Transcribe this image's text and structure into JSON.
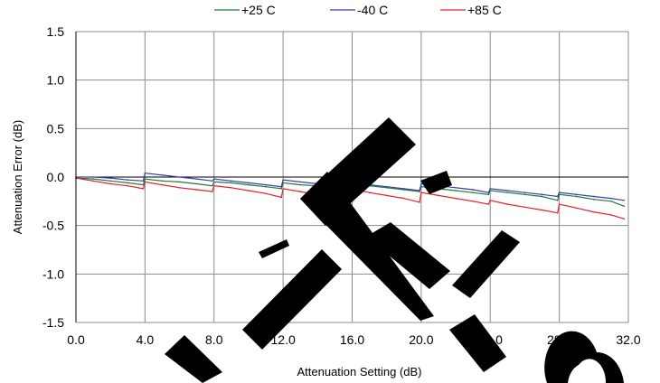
{
  "chart_data": {
    "type": "line",
    "xlabel": "Attenuation Setting (dB)",
    "ylabel": "Attenuation Error (dB)",
    "xlim": [
      0,
      32
    ],
    "ylim": [
      -1.5,
      1.5
    ],
    "x_ticks": [
      "0.0",
      "4.0",
      "8.0",
      "12.0",
      "16.0",
      "20.0",
      "24.0",
      "28.0",
      "32.0"
    ],
    "y_ticks": [
      "1.5",
      "1.0",
      "0.5",
      "0.0",
      "-0.5",
      "-1.0",
      "-1.5"
    ],
    "grid": true,
    "legend_position": "top",
    "x": [
      0.0,
      1.0,
      2.0,
      3.0,
      3.9,
      4.0,
      5.0,
      6.0,
      7.0,
      7.9,
      8.0,
      9.0,
      10.0,
      11.0,
      11.9,
      12.0,
      13.0,
      14.0,
      15.0,
      15.9,
      16.0,
      17.0,
      18.0,
      19.0,
      19.9,
      20.0,
      21.0,
      22.0,
      23.0,
      23.9,
      24.0,
      25.0,
      26.0,
      27.0,
      27.9,
      28.0,
      29.0,
      30.0,
      31.0,
      31.75
    ],
    "series": [
      {
        "name": "+25 C",
        "color": "#1f7a3c",
        "values": [
          -0.01,
          -0.02,
          -0.04,
          -0.06,
          -0.08,
          -0.02,
          -0.04,
          -0.05,
          -0.07,
          -0.09,
          -0.05,
          -0.06,
          -0.08,
          -0.1,
          -0.12,
          -0.06,
          -0.08,
          -0.09,
          -0.11,
          -0.12,
          -0.08,
          -0.09,
          -0.11,
          -0.13,
          -0.15,
          -0.1,
          -0.12,
          -0.14,
          -0.16,
          -0.18,
          -0.14,
          -0.16,
          -0.18,
          -0.2,
          -0.24,
          -0.18,
          -0.2,
          -0.23,
          -0.25,
          -0.3
        ]
      },
      {
        "name": "-40 C",
        "color": "#3a3fa8",
        "values": [
          0.0,
          0.0,
          -0.01,
          -0.03,
          -0.04,
          0.04,
          0.02,
          0.0,
          -0.02,
          -0.04,
          -0.02,
          -0.04,
          -0.06,
          -0.08,
          -0.1,
          -0.03,
          -0.05,
          -0.07,
          -0.09,
          -0.1,
          -0.06,
          -0.08,
          -0.1,
          -0.12,
          -0.14,
          -0.07,
          -0.09,
          -0.11,
          -0.13,
          -0.16,
          -0.12,
          -0.14,
          -0.16,
          -0.18,
          -0.2,
          -0.16,
          -0.18,
          -0.2,
          -0.22,
          -0.24
        ]
      },
      {
        "name": "+85 C",
        "color": "#e8202a",
        "values": [
          -0.01,
          -0.04,
          -0.07,
          -0.09,
          -0.12,
          -0.05,
          -0.08,
          -0.11,
          -0.13,
          -0.15,
          -0.09,
          -0.11,
          -0.14,
          -0.17,
          -0.21,
          -0.12,
          -0.15,
          -0.18,
          -0.22,
          -0.25,
          -0.12,
          -0.16,
          -0.19,
          -0.22,
          -0.26,
          -0.16,
          -0.19,
          -0.22,
          -0.25,
          -0.28,
          -0.24,
          -0.28,
          -0.31,
          -0.34,
          -0.37,
          -0.28,
          -0.32,
          -0.36,
          -0.39,
          -0.43
        ]
      }
    ]
  }
}
